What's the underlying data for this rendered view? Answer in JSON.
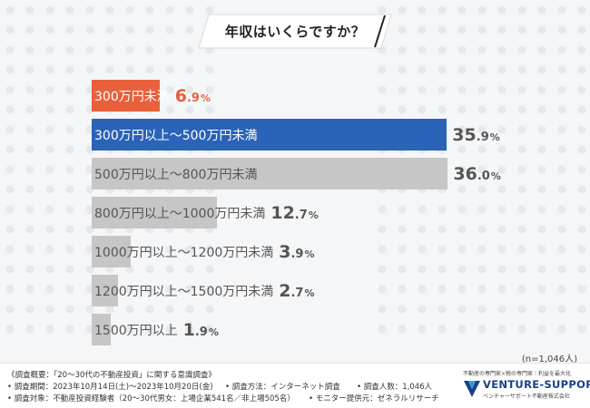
{
  "title": "年収はいくらですか？",
  "sample_size": "(n=1,046人)",
  "colors": {
    "highlight_orange": "#e8603c",
    "highlight_blue": "#2a63b8",
    "default_gray": "#c6c6c6",
    "background": "#f4f6f8"
  },
  "chart_data": {
    "type": "bar",
    "orientation": "horizontal",
    "title": "年収はいくらですか？",
    "categories": [
      "300万円未満",
      "300万円以上～500万円未満",
      "500万円以上～800万円未満",
      "800万円以上～1000万円未満",
      "1000万円以上～1200万円未満",
      "1200万円以上～1500万円未満",
      "1500万円以上"
    ],
    "values": [
      6.9,
      35.9,
      36.0,
      12.7,
      3.9,
      2.7,
      1.9
    ],
    "value_labels": [
      {
        "int": "6",
        "dec": ".9",
        "pct": "%"
      },
      {
        "int": "35",
        "dec": ".9",
        "pct": "%"
      },
      {
        "int": "36",
        "dec": ".0",
        "pct": "%"
      },
      {
        "int": "12",
        "dec": ".7",
        "pct": "%"
      },
      {
        "int": "3",
        "dec": ".9",
        "pct": "%"
      },
      {
        "int": "2",
        "dec": ".7",
        "pct": "%"
      },
      {
        "int": "1",
        "dec": ".9",
        "pct": "%"
      }
    ],
    "bar_colors": [
      "#e8603c",
      "#2a63b8",
      "#c6c6c6",
      "#c6c6c6",
      "#c6c6c6",
      "#c6c6c6",
      "#c6c6c6"
    ],
    "unit": "%",
    "xlabel": "",
    "ylabel": "",
    "grid": false,
    "legend": "none"
  },
  "footer": {
    "survey_outline": "《調査概要：「20～30代の不動産投資」に関する意識調査》",
    "survey_period": "• 調査期間：2023年10月14日(土)～2023年10月20日(金)",
    "survey_method": "• 調査方法：インターネット調査",
    "respondents": "• 調査人数：1,046人",
    "survey_target": "• 調査対象：不動産投資経験者（20～30代男女：上場企業541名／非上場505名）",
    "monitor_provider": "• モニター提供元：ゼネラルリサーチ"
  },
  "logo": {
    "tagline": "不動産の専門家×税の専門家｜利益を最大化",
    "name": "VENTURE-SUPPORT",
    "sub": "ベンチャーサポート不動産株式会社"
  }
}
